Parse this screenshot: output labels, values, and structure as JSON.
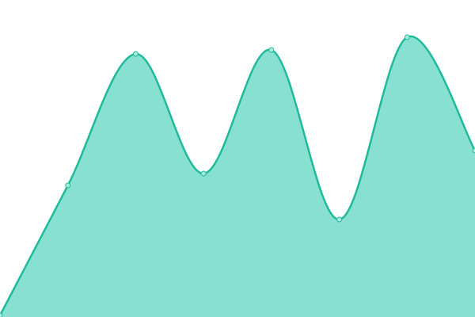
{
  "chart_data": {
    "type": "area",
    "categories": [
      null,
      null,
      null,
      null,
      null,
      null,
      null,
      null
    ],
    "values": [
      2,
      166,
      332,
      181,
      337,
      123,
      353,
      210
    ],
    "ylim": [
      0,
      400
    ],
    "color": "#1fba9a",
    "fill_color": "#88e0d0",
    "marker_fill": "#a8ece0"
  }
}
